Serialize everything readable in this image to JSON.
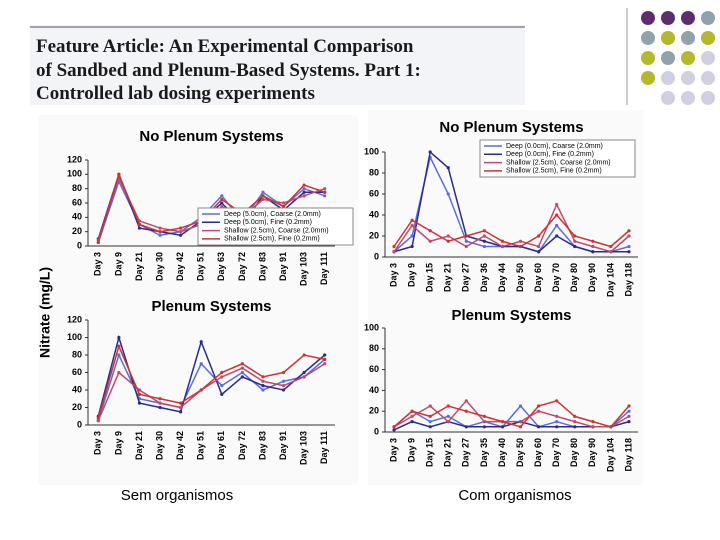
{
  "header": {
    "title": [
      "Feature Article: An Experimental Comparison",
      "of Sandbed and Plenum-Based Systems. Part 1:",
      "Controlled lab dosing experiments"
    ]
  },
  "chart_data": [
    {
      "type": "line",
      "title": "No Plenum Systems",
      "y_label": "Nitrate (mg/L)",
      "categories": [
        "Day 3",
        "Day 9",
        "Day 21",
        "Day 30",
        "Day 42",
        "Day 51",
        "Day 63",
        "Day 72",
        "Day 83",
        "Day 91",
        "Day 103",
        "Day 111"
      ],
      "ylim": [
        0,
        120
      ],
      "yticks": [
        0,
        20,
        40,
        60,
        80,
        100,
        120
      ],
      "series": [
        {
          "name": "Deep (5.0cm), Coarse (2.0mm)",
          "color": "#5a6fd6",
          "values": [
            5,
            90,
            30,
            15,
            20,
            40,
            70,
            35,
            75,
            55,
            80,
            70
          ]
        },
        {
          "name": "Deep (5.0cm), Fine (0.2mm)",
          "color": "#2b2b8f",
          "values": [
            10,
            100,
            25,
            20,
            15,
            35,
            60,
            30,
            70,
            50,
            75,
            75
          ]
        },
        {
          "name": "Shallow (2.5cm), Coarse (2.0mm)",
          "color": "#c04a6a",
          "values": [
            8,
            95,
            35,
            25,
            20,
            30,
            55,
            40,
            65,
            60,
            70,
            80
          ]
        },
        {
          "name": "Shallow (2.5cm), Fine (0.2mm)",
          "color": "#cc3333",
          "values": [
            5,
            100,
            30,
            20,
            25,
            35,
            65,
            45,
            70,
            55,
            85,
            75
          ]
        }
      ]
    },
    {
      "type": "line",
      "title": "Plenum Systems",
      "categories": [
        "Day 3",
        "Day 9",
        "Day 21",
        "Day 30",
        "Day 42",
        "Day 51",
        "Day 61",
        "Day 72",
        "Day 83",
        "Day 91",
        "Day 103",
        "Day 111"
      ],
      "ylim": [
        0,
        120
      ],
      "yticks": [
        0,
        20,
        40,
        60,
        80,
        100,
        120
      ],
      "series": [
        {
          "color": "#5a6fd6",
          "values": [
            5,
            80,
            30,
            25,
            20,
            70,
            45,
            60,
            40,
            50,
            55,
            75
          ]
        },
        {
          "color": "#2b2b8f",
          "values": [
            10,
            100,
            25,
            20,
            15,
            95,
            35,
            55,
            45,
            40,
            60,
            80
          ]
        },
        {
          "color": "#c04a6a",
          "values": [
            5,
            60,
            40,
            25,
            20,
            40,
            55,
            65,
            50,
            45,
            55,
            70
          ]
        },
        {
          "color": "#cc3333",
          "values": [
            8,
            90,
            35,
            30,
            25,
            40,
            60,
            70,
            55,
            60,
            80,
            75
          ]
        }
      ]
    },
    {
      "type": "line",
      "title": "No Plenum Systems",
      "categories": [
        "Day 3",
        "Day 9",
        "Day 15",
        "Day 21",
        "Day 27",
        "Day 36",
        "Day 44",
        "Day 50",
        "Day 60",
        "Day 70",
        "Day 80",
        "Day 90",
        "Day 104",
        "Day 118"
      ],
      "ylim": [
        0,
        100
      ],
      "yticks": [
        0,
        20,
        40,
        60,
        80,
        100
      ],
      "series": [
        {
          "name": "Deep (0.0cm), Coarse (2.0mm)",
          "color": "#5a6fd6",
          "values": [
            5,
            20,
            95,
            60,
            15,
            10,
            10,
            10,
            5,
            30,
            10,
            5,
            5,
            10
          ]
        },
        {
          "name": "Deep (0.0cm), Fine (0.2mm)",
          "color": "#2b2b8f",
          "values": [
            5,
            10,
            100,
            85,
            20,
            15,
            10,
            10,
            5,
            20,
            10,
            5,
            5,
            5
          ]
        },
        {
          "name": "Shallow (2.5cm), Coarse (2.0mm)",
          "color": "#c04a6a",
          "values": [
            5,
            30,
            15,
            20,
            10,
            20,
            10,
            15,
            10,
            50,
            15,
            10,
            5,
            20
          ]
        },
        {
          "name": "Shallow (2.5cm), Fine (0.2mm)",
          "color": "#cc3333",
          "values": [
            10,
            35,
            25,
            15,
            20,
            25,
            15,
            10,
            20,
            40,
            20,
            15,
            10,
            25
          ]
        }
      ]
    },
    {
      "type": "line",
      "title": "Plenum Systems",
      "categories": [
        "Day 3",
        "Day 9",
        "Day 15",
        "Day 21",
        "Day 27",
        "Day 35",
        "Day 40",
        "Day 50",
        "Day 60",
        "Day 70",
        "Day 80",
        "Day 90",
        "Day 104",
        "Day 118"
      ],
      "ylim": [
        0,
        100
      ],
      "yticks": [
        0,
        20,
        40,
        60,
        80,
        100
      ],
      "series": [
        {
          "color": "#5a6fd6",
          "values": [
            5,
            20,
            10,
            15,
            5,
            10,
            5,
            25,
            5,
            10,
            5,
            5,
            5,
            20
          ]
        },
        {
          "color": "#2b2b8f",
          "values": [
            2,
            10,
            5,
            10,
            5,
            5,
            5,
            10,
            5,
            5,
            5,
            5,
            5,
            10
          ]
        },
        {
          "color": "#c04a6a",
          "values": [
            5,
            15,
            25,
            10,
            30,
            10,
            10,
            10,
            20,
            15,
            10,
            5,
            5,
            15
          ]
        },
        {
          "color": "#cc3333",
          "values": [
            5,
            20,
            15,
            25,
            20,
            15,
            10,
            5,
            25,
            30,
            15,
            10,
            5,
            25
          ]
        }
      ]
    }
  ],
  "captions": [
    "Sem organismos",
    "Com organismos"
  ]
}
